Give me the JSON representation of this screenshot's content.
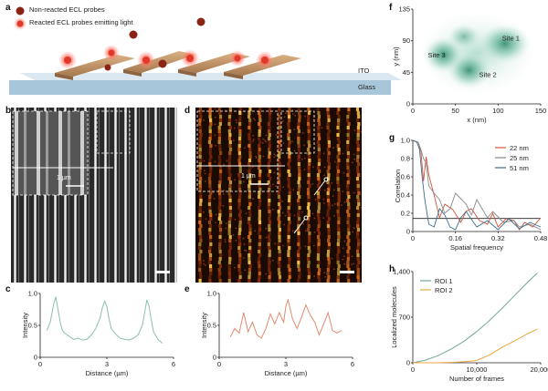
{
  "panels": {
    "a": {
      "label": "a",
      "legend": [
        "Non-reacted ECL probes",
        "Reacted ECL probes emitting light"
      ],
      "layers": [
        "ITO",
        "Glass"
      ],
      "colors": {
        "probe": "#8b2414",
        "glow": "#ff5a4a",
        "rod": "#c89a6e",
        "ito": "#cfe0ec",
        "glass": "#a9c9dd"
      }
    },
    "b": {
      "label": "b",
      "inset_scale": "1 µm"
    },
    "c": {
      "label": "c"
    },
    "d": {
      "label": "d",
      "inset_scale": "1 µm"
    },
    "e": {
      "label": "e"
    },
    "f": {
      "label": "f",
      "sites": [
        "Site 1",
        "Site 2",
        "Site 3"
      ]
    },
    "g": {
      "label": "g"
    },
    "h": {
      "label": "h"
    }
  },
  "chart_data": [
    {
      "id": "c",
      "type": "line",
      "xlabel": "Distance (µm)",
      "ylabel": "Intensity",
      "xlim": [
        0,
        6
      ],
      "ylim": [
        0,
        1
      ],
      "xticks": [
        "0",
        "3",
        "6"
      ],
      "yticks": [
        "0",
        "0.5",
        "1.0"
      ],
      "color": "#8cc0ae",
      "x": [
        0.3,
        0.45,
        0.6,
        0.7,
        0.8,
        0.9,
        1.0,
        1.1,
        1.3,
        1.5,
        1.7,
        1.9,
        2.1,
        2.3,
        2.5,
        2.7,
        2.8,
        2.9,
        3.0,
        3.1,
        3.2,
        3.4,
        3.6,
        3.8,
        4.0,
        4.2,
        4.4,
        4.6,
        4.7,
        4.8,
        4.9,
        5.0,
        5.1,
        5.3,
        5.5
      ],
      "y": [
        0.42,
        0.55,
        0.82,
        0.95,
        0.75,
        0.55,
        0.42,
        0.38,
        0.33,
        0.28,
        0.3,
        0.27,
        0.28,
        0.35,
        0.45,
        0.62,
        0.78,
        0.88,
        0.8,
        0.6,
        0.45,
        0.36,
        0.3,
        0.28,
        0.27,
        0.3,
        0.35,
        0.5,
        0.7,
        0.9,
        0.8,
        0.58,
        0.4,
        0.28,
        0.22
      ]
    },
    {
      "id": "e",
      "type": "line",
      "xlabel": "Distance (µm)",
      "ylabel": "Intensity",
      "xlim": [
        0,
        6
      ],
      "ylim": [
        0,
        1
      ],
      "xticks": [
        "0",
        "3",
        "6"
      ],
      "yticks": [
        "0",
        "0.5",
        "1.0"
      ],
      "color": "#e08a6e",
      "x": [
        0.5,
        0.7,
        0.9,
        1.1,
        1.3,
        1.5,
        1.7,
        1.9,
        2.1,
        2.3,
        2.5,
        2.7,
        2.9,
        3.0,
        3.1,
        3.3,
        3.5,
        3.7,
        3.9,
        4.1,
        4.3,
        4.5,
        4.7,
        4.9,
        5.1,
        5.3,
        5.5
      ],
      "y": [
        0.32,
        0.45,
        0.38,
        0.7,
        0.4,
        0.55,
        0.35,
        0.3,
        0.45,
        0.68,
        0.52,
        0.7,
        0.55,
        0.8,
        0.9,
        0.6,
        0.45,
        0.62,
        0.82,
        0.66,
        0.55,
        0.35,
        0.52,
        0.7,
        0.42,
        0.38,
        0.42
      ]
    },
    {
      "id": "f",
      "type": "heatmap",
      "xlabel": "x (nm)",
      "ylabel": "y (nm)",
      "xlim": [
        0,
        150
      ],
      "ylim": [
        0,
        135
      ],
      "xticks": [
        "0",
        "50",
        "100",
        "150"
      ],
      "yticks": [
        "0",
        "45",
        "90",
        "135"
      ],
      "annotations": [
        {
          "label": "Site 1",
          "x": 115,
          "y": 90
        },
        {
          "label": "Site 2",
          "x": 88,
          "y": 38
        },
        {
          "label": "Site 3",
          "x": 28,
          "y": 66
        }
      ]
    },
    {
      "id": "g",
      "type": "line",
      "xlabel": "Spatial frequency",
      "ylabel": "Correlation",
      "xlim": [
        0,
        0.48
      ],
      "ylim": [
        0,
        1
      ],
      "xticks": [
        "0",
        "0.16",
        "0.32",
        "0.48"
      ],
      "yticks": [
        "0",
        "0.2",
        "0.4",
        "0.6",
        "0.8",
        "1.0"
      ],
      "threshold": 0.143,
      "series": [
        {
          "name": "22 nm",
          "color": "#d2543c",
          "x": [
            0,
            0.02,
            0.03,
            0.04,
            0.05,
            0.06,
            0.08,
            0.1,
            0.12,
            0.15,
            0.18,
            0.2,
            0.22,
            0.25,
            0.28,
            0.3,
            0.32,
            0.35,
            0.38,
            0.4,
            0.42,
            0.45,
            0.48
          ],
          "y": [
            1,
            0.98,
            0.88,
            0.55,
            0.82,
            0.62,
            0.4,
            0.15,
            0.3,
            0.24,
            0.1,
            0.22,
            0.25,
            0.12,
            0.08,
            0.2,
            0.05,
            0.14,
            0.12,
            0.02,
            0.1,
            0.05,
            0.15
          ]
        },
        {
          "name": "25 nm",
          "color": "#888888",
          "x": [
            0,
            0.02,
            0.03,
            0.04,
            0.05,
            0.06,
            0.08,
            0.1,
            0.12,
            0.14,
            0.16,
            0.2,
            0.22,
            0.24,
            0.28,
            0.3,
            0.34,
            0.38,
            0.4,
            0.44,
            0.48
          ],
          "y": [
            1,
            0.98,
            0.9,
            0.8,
            0.75,
            0.5,
            0.42,
            0.35,
            0.2,
            0.25,
            0.42,
            0.3,
            0.18,
            0.35,
            0.15,
            0.22,
            0.1,
            0.12,
            0.05,
            0.08,
            0.02
          ]
        },
        {
          "name": "51 nm",
          "color": "#3c6e8c",
          "x": [
            0,
            0.015,
            0.025,
            0.035,
            0.045,
            0.06,
            0.08,
            0.1,
            0.12,
            0.14,
            0.16,
            0.18,
            0.2,
            0.24,
            0.28,
            0.32,
            0.36,
            0.4,
            0.44,
            0.48
          ],
          "y": [
            1,
            0.98,
            0.9,
            0.6,
            0.35,
            0.08,
            0.05,
            0.25,
            0.18,
            0.05,
            0.02,
            0.15,
            0.22,
            0.05,
            0.12,
            0.02,
            0.14,
            0.03,
            0.1,
            0.05
          ]
        }
      ]
    },
    {
      "id": "h",
      "type": "line",
      "xlabel": "Number of frames",
      "ylabel": "Localized molecules",
      "xlim": [
        0,
        20000
      ],
      "ylim": [
        0,
        1400
      ],
      "xticks": [
        "0",
        "10,000",
        "20,000"
      ],
      "yticks": [
        "0",
        "700",
        "1,400"
      ],
      "series": [
        {
          "name": "ROI 1",
          "color": "#6fa69a",
          "x": [
            0,
            2000,
            4000,
            6000,
            8000,
            10000,
            12000,
            14000,
            16000,
            18000,
            19500
          ],
          "y": [
            0,
            40,
            110,
            210,
            330,
            480,
            650,
            840,
            1040,
            1240,
            1380
          ]
        },
        {
          "name": "ROI 2",
          "color": "#e8a93a",
          "x": [
            0,
            4000,
            6000,
            8000,
            10000,
            12000,
            14000,
            16000,
            18000,
            19500
          ],
          "y": [
            0,
            0,
            5,
            15,
            35,
            120,
            240,
            340,
            450,
            520
          ]
        }
      ]
    }
  ]
}
